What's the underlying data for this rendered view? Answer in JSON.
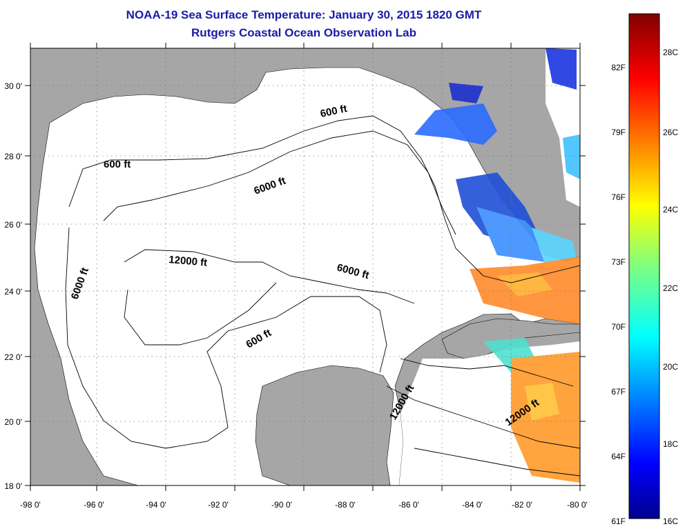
{
  "title": "NOAA-19 Sea Surface Temperature:  January 30, 2015 1820 GMT",
  "subtitle": "Rutgers Coastal Ocean Observation Lab",
  "lon_ticks": [
    "-98 0'",
    "-96 0'",
    "-94 0'",
    "-92 0'",
    "-90 0'",
    "-88 0'",
    "-86 0'",
    "-84 0'",
    "-82 0'",
    "-80 0'"
  ],
  "lat_ticks": [
    "18 0'",
    "20 0'",
    "22 0'",
    "24 0'",
    "26 0'",
    "28 0'",
    "30 0'"
  ],
  "contour_labels": [
    "600 ft",
    "600 ft",
    "600 ft",
    "6000 ft",
    "6000 ft",
    "6000 ft",
    "12000 ft",
    "12000 ft",
    "12000 ft"
  ],
  "colorbar": {
    "fahrenheit": [
      "82F",
      "79F",
      "76F",
      "73F",
      "70F",
      "67F",
      "64F",
      "61F"
    ],
    "celsius": [
      "28C",
      "26C",
      "24C",
      "22C",
      "20C",
      "18C",
      "16C"
    ]
  },
  "colors": {
    "land": "#a6a6a6",
    "title": "#1a1aa8",
    "ocean": "#ffffff"
  }
}
